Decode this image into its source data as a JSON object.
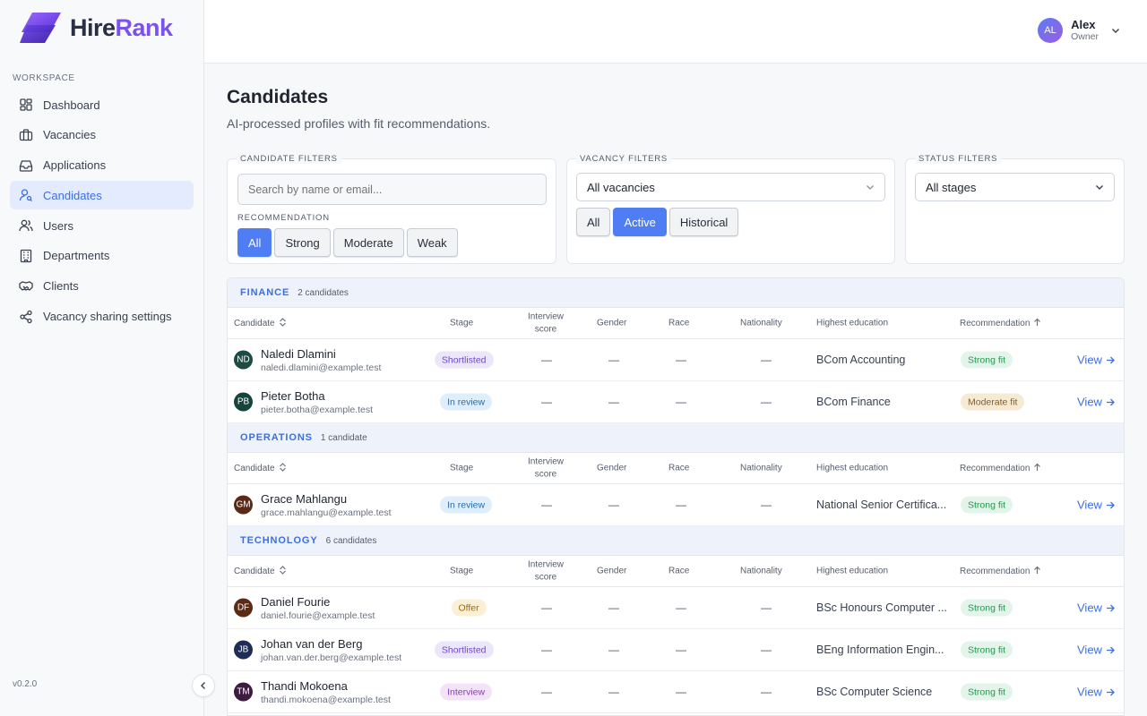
{
  "brand": {
    "name_a": "Hire",
    "name_b": "Rank",
    "accent": "#7b52ee"
  },
  "sidebar": {
    "section_label": "WORKSPACE",
    "items": [
      {
        "label": "Dashboard",
        "icon": "dashboard-icon"
      },
      {
        "label": "Vacancies",
        "icon": "briefcase-icon"
      },
      {
        "label": "Applications",
        "icon": "inbox-icon"
      },
      {
        "label": "Candidates",
        "icon": "user-search-icon",
        "active": true
      },
      {
        "label": "Users",
        "icon": "users-icon"
      },
      {
        "label": "Departments",
        "icon": "building-icon"
      },
      {
        "label": "Clients",
        "icon": "handshake-icon"
      },
      {
        "label": "Vacancy sharing settings",
        "icon": "share-icon"
      }
    ],
    "version": "v0.2.0"
  },
  "user": {
    "initials": "AL",
    "name": "Alex",
    "role": "Owner"
  },
  "page": {
    "title": "Candidates",
    "subtitle": "AI-processed profiles with fit recommendations."
  },
  "filters": {
    "candidate": {
      "label": "CANDIDATE FILTERS",
      "search_placeholder": "Search by name or email...",
      "rec_label": "RECOMMENDATION",
      "options": [
        "All",
        "Strong",
        "Moderate",
        "Weak"
      ],
      "selected": "All"
    },
    "vacancy": {
      "label": "VACANCY FILTERS",
      "select_value": "All vacancies",
      "options": [
        "All",
        "Active",
        "Historical"
      ],
      "selected": "Active"
    },
    "status": {
      "label": "STATUS FILTERS",
      "select_value": "All stages"
    }
  },
  "columns": {
    "candidate": "Candidate",
    "stage": "Stage",
    "interview_1": "Interview",
    "interview_2": "score",
    "gender": "Gender",
    "race": "Race",
    "nationality": "Nationality",
    "education": "Highest education",
    "recommendation": "Recommendation"
  },
  "view_label": "View",
  "dash": "—",
  "groups": [
    {
      "name": "FINANCE",
      "count": "2 candidates",
      "rows": [
        {
          "initials": "ND",
          "avatar_color": "#1d4a43",
          "name": "Naledi Dlamini",
          "email": "naledi.dlamini@example.test",
          "stage": "Shortlisted",
          "stage_kind": "shortlisted",
          "education": "BCom Accounting",
          "rec": "Strong fit",
          "rec_kind": "strong"
        },
        {
          "initials": "PB",
          "avatar_color": "#14443c",
          "name": "Pieter Botha",
          "email": "pieter.botha@example.test",
          "stage": "In review",
          "stage_kind": "review",
          "education": "BCom Finance",
          "rec": "Moderate fit",
          "rec_kind": "moderate"
        }
      ]
    },
    {
      "name": "OPERATIONS",
      "count": "1 candidate",
      "rows": [
        {
          "initials": "GM",
          "avatar_color": "#5a2a17",
          "name": "Grace Mahlangu",
          "email": "grace.mahlangu@example.test",
          "stage": "In review",
          "stage_kind": "review",
          "education": "National Senior Certifica...",
          "rec": "Strong fit",
          "rec_kind": "strong"
        }
      ]
    },
    {
      "name": "TECHNOLOGY",
      "count": "6 candidates",
      "rows": [
        {
          "initials": "DF",
          "avatar_color": "#5a2a12",
          "name": "Daniel Fourie",
          "email": "daniel.fourie@example.test",
          "stage": "Offer",
          "stage_kind": "offer",
          "education": "BSc Honours Computer ...",
          "rec": "Strong fit",
          "rec_kind": "strong"
        },
        {
          "initials": "JB",
          "avatar_color": "#1e2d55",
          "name": "Johan van der Berg",
          "email": "johan.van.der.berg@example.test",
          "stage": "Shortlisted",
          "stage_kind": "shortlisted",
          "education": "BEng Information Engin...",
          "rec": "Strong fit",
          "rec_kind": "strong"
        },
        {
          "initials": "TM",
          "avatar_color": "#3d1c3f",
          "name": "Thandi Mokoena",
          "email": "thandi.mokoena@example.test",
          "stage": "Interview",
          "stage_kind": "interview",
          "education": "BSc Computer Science",
          "rec": "Strong fit",
          "rec_kind": "strong"
        }
      ]
    }
  ]
}
